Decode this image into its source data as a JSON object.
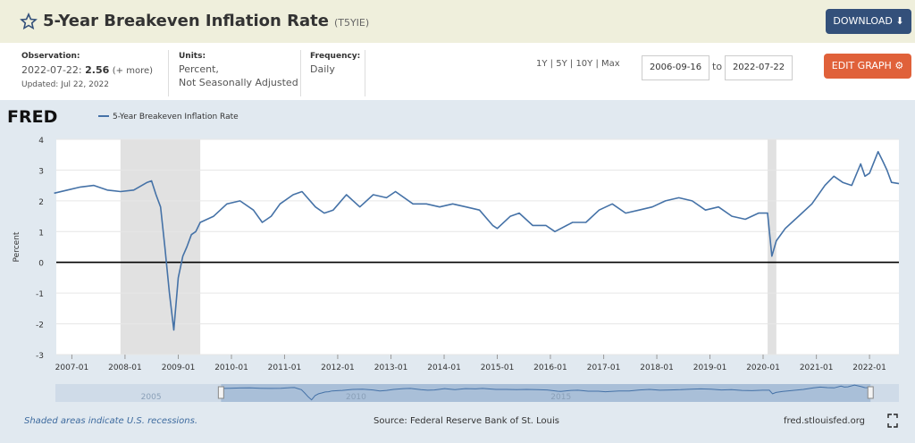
{
  "header": {
    "title": "5-Year Breakeven Inflation Rate",
    "series_id": "(T5YIE)",
    "download": "DOWNLOAD"
  },
  "info": {
    "observation_label": "Observation:",
    "observation_date": "2022-07-22:",
    "observation_value": "2.56",
    "more": "(+ more)",
    "updated": "Updated: Jul 22, 2022",
    "units_label": "Units:",
    "units_1": "Percent,",
    "units_2": "Not Seasonally Adjusted",
    "frequency_label": "Frequency:",
    "frequency": "Daily",
    "ranges": [
      "1Y",
      "5Y",
      "10Y",
      "Max"
    ],
    "start_date": "2006-09-16",
    "to": "to",
    "end_date": "2022-07-22",
    "edit": "EDIT GRAPH"
  },
  "logo": "FRED",
  "chart_data": {
    "type": "line",
    "y_label": "Percent",
    "x": [
      "2006-09",
      "2006-12",
      "2007-03",
      "2007-06",
      "2007-09",
      "2007-12",
      "2008-03",
      "2008-06",
      "2008-07",
      "2008-08",
      "2008-09",
      "2008-10",
      "2008-11",
      "2008-12",
      "2009-01",
      "2009-02",
      "2009-03",
      "2009-04",
      "2009-05",
      "2009-06",
      "2009-09",
      "2009-12",
      "2010-03",
      "2010-06",
      "2010-08",
      "2010-10",
      "2010-12",
      "2011-03",
      "2011-05",
      "2011-08",
      "2011-10",
      "2011-12",
      "2012-03",
      "2012-06",
      "2012-09",
      "2012-12",
      "2013-02",
      "2013-06",
      "2013-09",
      "2013-12",
      "2014-03",
      "2014-06",
      "2014-09",
      "2014-12",
      "2015-01",
      "2015-04",
      "2015-06",
      "2015-09",
      "2015-12",
      "2016-02",
      "2016-06",
      "2016-09",
      "2016-12",
      "2017-03",
      "2017-06",
      "2017-09",
      "2017-12",
      "2018-03",
      "2018-06",
      "2018-09",
      "2018-12",
      "2019-03",
      "2019-06",
      "2019-09",
      "2019-12",
      "2020-02",
      "2020-03",
      "2020-04",
      "2020-06",
      "2020-09",
      "2020-12",
      "2021-03",
      "2021-05",
      "2021-07",
      "2021-09",
      "2021-11",
      "2021-12",
      "2022-01",
      "2022-03",
      "2022-04",
      "2022-05",
      "2022-06",
      "2022-07-22"
    ],
    "series": [
      {
        "name": "5-Year Breakeven Inflation Rate",
        "color": "#4572a7",
        "values": [
          2.25,
          2.35,
          2.45,
          2.5,
          2.35,
          2.3,
          2.35,
          2.6,
          2.65,
          2.2,
          1.8,
          0.5,
          -1.0,
          -2.2,
          -0.5,
          0.2,
          0.5,
          0.9,
          1.0,
          1.3,
          1.5,
          1.9,
          2.0,
          1.7,
          1.3,
          1.5,
          1.9,
          2.2,
          2.3,
          1.8,
          1.6,
          1.7,
          2.2,
          1.8,
          2.2,
          2.1,
          2.3,
          1.9,
          1.9,
          1.8,
          1.9,
          1.8,
          1.7,
          1.2,
          1.1,
          1.5,
          1.6,
          1.2,
          1.2,
          1.0,
          1.3,
          1.3,
          1.7,
          1.9,
          1.6,
          1.7,
          1.8,
          2.0,
          2.1,
          2.0,
          1.7,
          1.8,
          1.5,
          1.4,
          1.6,
          1.6,
          0.2,
          0.7,
          1.1,
          1.5,
          1.9,
          2.5,
          2.8,
          2.6,
          2.5,
          3.2,
          2.8,
          2.9,
          3.6,
          3.3,
          3.0,
          2.6,
          2.56
        ]
      }
    ],
    "xlim": [
      "2006-09-16",
      "2022-07-22"
    ],
    "xticks": [
      "2007-01",
      "2008-01",
      "2009-01",
      "2010-01",
      "2011-01",
      "2012-01",
      "2013-01",
      "2014-01",
      "2015-01",
      "2016-01",
      "2017-01",
      "2018-01",
      "2019-01",
      "2020-01",
      "2021-01",
      "2022-01"
    ],
    "ylim": [
      -3,
      4
    ],
    "yticks": [
      -3,
      -2,
      -1,
      0,
      1,
      2,
      3,
      4
    ],
    "grid": true,
    "recessions": [
      [
        "2007-12",
        "2009-06"
      ],
      [
        "2020-02",
        "2020-04"
      ]
    ],
    "recession_color": "#e1e1e1",
    "navigator": {
      "xlim": [
        "2002-09",
        "2023-04"
      ],
      "labels": [
        "2005",
        "2010",
        "2015"
      ]
    },
    "footnote": "Shaded areas indicate U.S. recessions.",
    "source": "Source: Federal Reserve Bank of St. Louis",
    "site": "fred.stlouisfed.org"
  }
}
